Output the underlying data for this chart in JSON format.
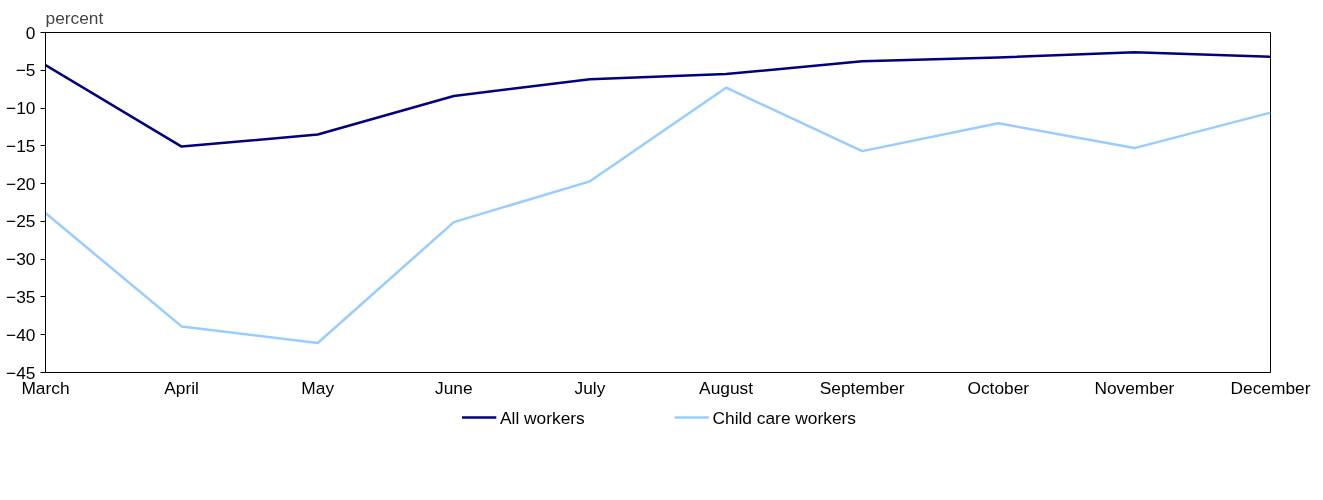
{
  "chart_data": {
    "type": "line",
    "ylabel": "percent",
    "categories": [
      "March",
      "April",
      "May",
      "June",
      "July",
      "August",
      "September",
      "October",
      "November",
      "December"
    ],
    "series": [
      {
        "name": "All workers",
        "color": "#000080",
        "values": [
          -4.3,
          -15.1,
          -13.5,
          -8.4,
          -6.2,
          -5.5,
          -3.8,
          -3.3,
          -2.6,
          -3.2
        ]
      },
      {
        "name": "Child care workers",
        "color": "#99ccff",
        "values": [
          -23.9,
          -38.9,
          -41.1,
          -25.1,
          -19.7,
          -7.3,
          -15.7,
          -12.0,
          -15.3,
          -10.6
        ]
      }
    ],
    "ylim": [
      -45,
      0
    ],
    "yticks": [
      -45,
      -40,
      -35,
      -30,
      -25,
      -20,
      -15,
      -10,
      -5,
      0
    ],
    "grid": false,
    "legend": "bottom",
    "line_style": "solid",
    "marker": "none"
  }
}
